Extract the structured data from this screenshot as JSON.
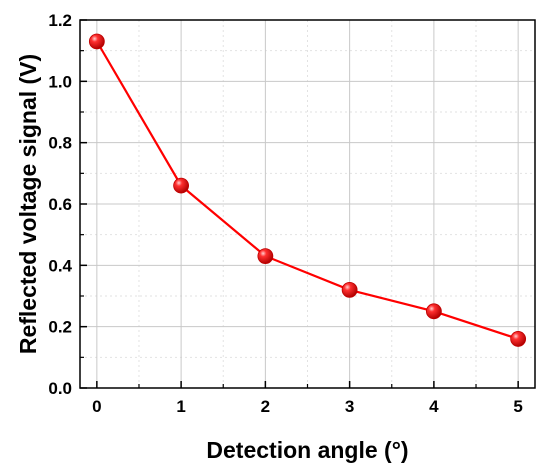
{
  "chart_data": {
    "type": "line",
    "title": "",
    "xlabel": "Detection angle (°)",
    "ylabel": "Reflected voltage signal (V)",
    "xlim": [
      -0.2,
      5.2
    ],
    "ylim": [
      0,
      1.2
    ],
    "x_ticks": [
      "0",
      "1",
      "2",
      "3",
      "4",
      "5"
    ],
    "y_ticks": [
      "0.0",
      "0.2",
      "0.4",
      "0.6",
      "0.8",
      "1.0",
      "1.2"
    ],
    "grid": true,
    "legend": "none",
    "series": [
      {
        "color": "#ff0000",
        "marker": "sphere",
        "x": [
          0,
          1,
          2,
          3,
          4,
          5
        ],
        "y": [
          1.13,
          0.66,
          0.43,
          0.32,
          0.25,
          0.16
        ]
      }
    ]
  }
}
